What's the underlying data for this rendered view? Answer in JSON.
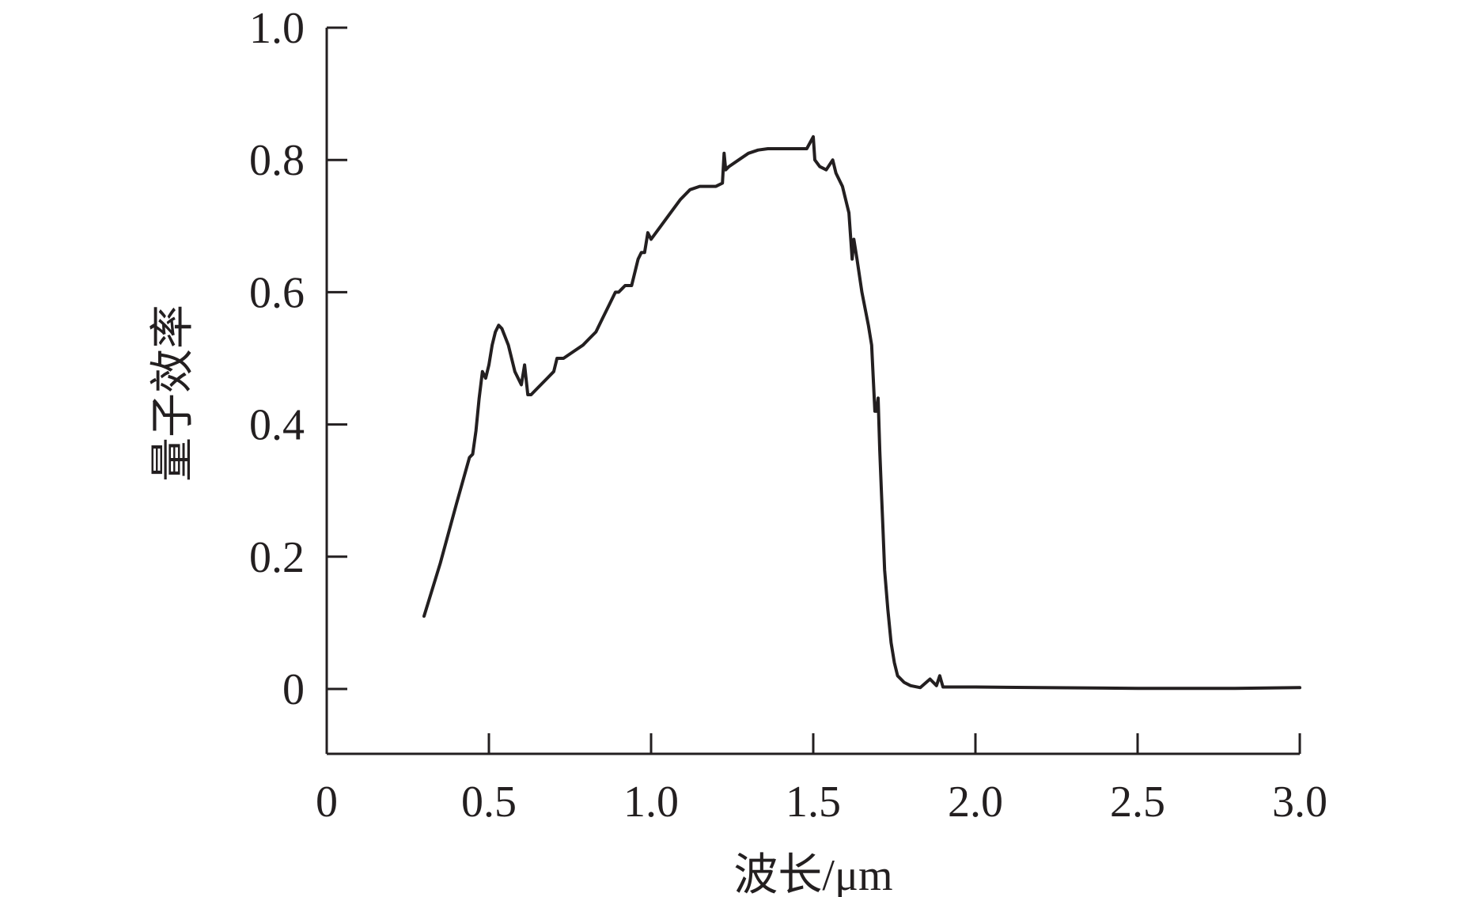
{
  "chart_data": {
    "type": "line",
    "xlabel": "波长/μm",
    "ylabel": "量子效率",
    "xlim": [
      0,
      3.0
    ],
    "ylim": [
      -0.1,
      1.0
    ],
    "x_ticks": [
      0,
      0.5,
      1.0,
      1.5,
      2.0,
      2.5,
      3.0
    ],
    "x_tick_labels": [
      "0",
      "0.5",
      "1.0",
      "1.5",
      "2.0",
      "2.5",
      "3.0"
    ],
    "y_ticks": [
      0,
      0.2,
      0.4,
      0.6,
      0.8,
      1.0
    ],
    "y_tick_labels": [
      "0",
      "0.2",
      "0.4",
      "0.6",
      "0.8",
      "1.0"
    ],
    "grid": false,
    "legend": false,
    "line_color": "#231f20",
    "series": [
      {
        "x": [
          0.3,
          0.35,
          0.4,
          0.44,
          0.45,
          0.46,
          0.47,
          0.48,
          0.49,
          0.5,
          0.51,
          0.52,
          0.53,
          0.54,
          0.56,
          0.58,
          0.6,
          0.61,
          0.62,
          0.63,
          0.65,
          0.68,
          0.7,
          0.71,
          0.73,
          0.76,
          0.79,
          0.81,
          0.83,
          0.85,
          0.87,
          0.89,
          0.9,
          0.91,
          0.92,
          0.94,
          0.96,
          0.97,
          0.98,
          0.99,
          1.0,
          1.03,
          1.06,
          1.09,
          1.12,
          1.15,
          1.18,
          1.2,
          1.22,
          1.225,
          1.23,
          1.24,
          1.27,
          1.3,
          1.33,
          1.36,
          1.4,
          1.44,
          1.48,
          1.5,
          1.505,
          1.52,
          1.54,
          1.56,
          1.57,
          1.59,
          1.6,
          1.61,
          1.62,
          1.625,
          1.635,
          1.65,
          1.67,
          1.68,
          1.69,
          1.695,
          1.7,
          1.705,
          1.71,
          1.715,
          1.72,
          1.73,
          1.74,
          1.75,
          1.76,
          1.78,
          1.8,
          1.83,
          1.86,
          1.88,
          1.89,
          1.9,
          2.0,
          2.2,
          2.5,
          2.8,
          3.0
        ],
        "y": [
          0.11,
          0.19,
          0.28,
          0.35,
          0.355,
          0.39,
          0.44,
          0.48,
          0.47,
          0.49,
          0.52,
          0.54,
          0.55,
          0.545,
          0.52,
          0.48,
          0.46,
          0.49,
          0.445,
          0.445,
          0.455,
          0.47,
          0.48,
          0.5,
          0.5,
          0.51,
          0.52,
          0.53,
          0.54,
          0.56,
          0.58,
          0.6,
          0.6,
          0.605,
          0.61,
          0.61,
          0.65,
          0.66,
          0.66,
          0.69,
          0.68,
          0.7,
          0.72,
          0.74,
          0.755,
          0.76,
          0.76,
          0.76,
          0.765,
          0.81,
          0.785,
          0.79,
          0.8,
          0.81,
          0.815,
          0.817,
          0.817,
          0.817,
          0.817,
          0.835,
          0.8,
          0.79,
          0.785,
          0.8,
          0.78,
          0.76,
          0.74,
          0.72,
          0.65,
          0.68,
          0.65,
          0.6,
          0.55,
          0.52,
          0.42,
          0.42,
          0.44,
          0.36,
          0.3,
          0.24,
          0.18,
          0.12,
          0.07,
          0.04,
          0.02,
          0.01,
          0.005,
          0.002,
          0.015,
          0.005,
          0.02,
          0.003,
          0.003,
          0.002,
          0.001,
          0.001,
          0.002
        ]
      }
    ]
  }
}
